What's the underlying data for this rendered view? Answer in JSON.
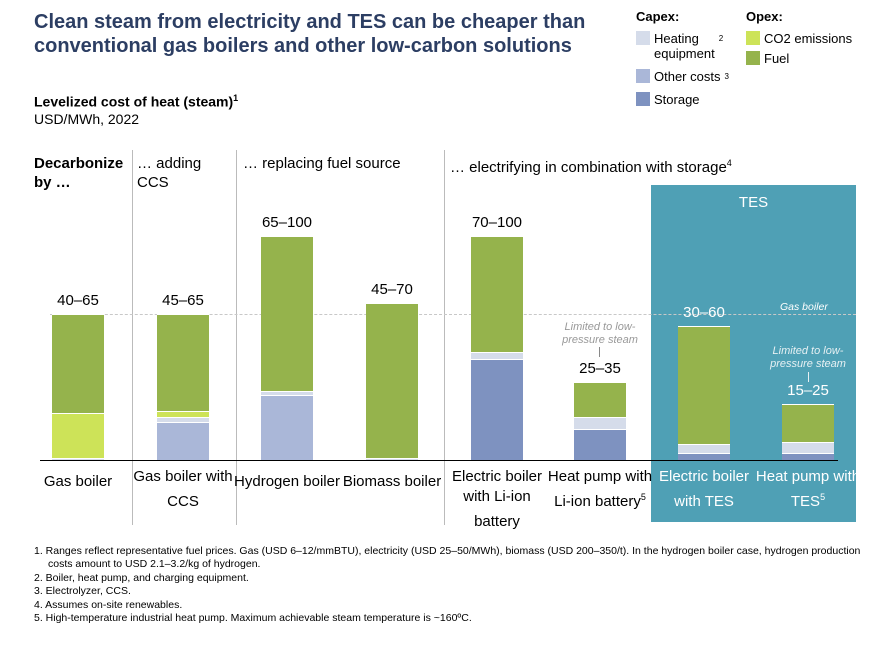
{
  "title": "Clean steam from electricity and TES can be cheaper than conventional gas boilers and other low-carbon solutions",
  "subtitle": "Levelized cost of heat (steam)",
  "subtitle_sup": "1",
  "unit": "USD/MWh, 2022",
  "legend": {
    "capex_label": "Capex:",
    "opex_label": "Opex:",
    "items": [
      {
        "label": "Heating equipment",
        "sup": "2",
        "color": "#d5dcea"
      },
      {
        "label": "Other costs",
        "sup": "3",
        "color": "#aab7d8"
      },
      {
        "label": "Storage",
        "sup": "",
        "color": "#7e92c0"
      },
      {
        "label": "CO2 emissions",
        "sup": "",
        "color": "#cde358"
      },
      {
        "label": "Fuel",
        "sup": "",
        "color": "#95b34c"
      }
    ]
  },
  "groups": [
    {
      "label": "Decarbonize by …"
    },
    {
      "label": "… adding CCS"
    },
    {
      "label": "… replacing fuel source"
    },
    {
      "label": "… electrifying in combination with storage",
      "sup": "4"
    }
  ],
  "tes_label": "TES",
  "reference_label": "Gas boiler",
  "annotation": "Limited to low-pressure steam",
  "chart_data": {
    "type": "bar",
    "stacked": true,
    "reference_line": 65,
    "categories": [
      "Gas boiler",
      "Gas boiler with CCS",
      "Hydrogen boiler",
      "Biomass boiler",
      "Electric boiler with Li-ion battery",
      "Heat pump with Li-ion battery",
      "Electric boiler with TES",
      "Heat pump with TES"
    ],
    "category_sups": [
      "",
      "",
      "",
      "",
      "",
      "5",
      "",
      "5"
    ],
    "ranges": [
      "40–65",
      "45–65",
      "65–100",
      "45–70",
      "70–100",
      "25–35",
      "30–60",
      "15–25"
    ],
    "series": [
      {
        "name": "Storage",
        "color": "#7e92c0",
        "values": [
          0,
          0,
          0,
          0,
          45,
          14,
          3,
          3
        ]
      },
      {
        "name": "Other costs",
        "color": "#aab7d8",
        "values": [
          0,
          17,
          29,
          0,
          0,
          0,
          0,
          0
        ]
      },
      {
        "name": "Heating equipment",
        "color": "#d5dcea",
        "values": [
          1,
          2,
          2,
          1,
          3,
          5,
          4,
          5
        ]
      },
      {
        "name": "CO2 emissions",
        "color": "#cde358",
        "values": [
          20,
          3,
          0,
          0,
          0,
          0,
          0,
          0
        ]
      },
      {
        "name": "Fuel",
        "color": "#95b34c",
        "values": [
          44,
          43,
          69,
          69,
          52,
          16,
          53,
          17
        ]
      }
    ]
  },
  "footnotes": [
    "1. Ranges reflect representative fuel prices. Gas (USD 6–12/mmBTU), electricity (USD 25–50/MWh), biomass (USD 200–350/t). In the hydrogen boiler case, hydrogen production costs amount to USD 2.1–3.2/kg of hydrogen.",
    "2. Boiler, heat pump, and charging equipment.",
    "3. Electrolyzer, CCS.",
    "4. Assumes on-site renewables.",
    "5. High-temperature industrial heat pump. Maximum achievable steam temperature is ~160ºC."
  ]
}
